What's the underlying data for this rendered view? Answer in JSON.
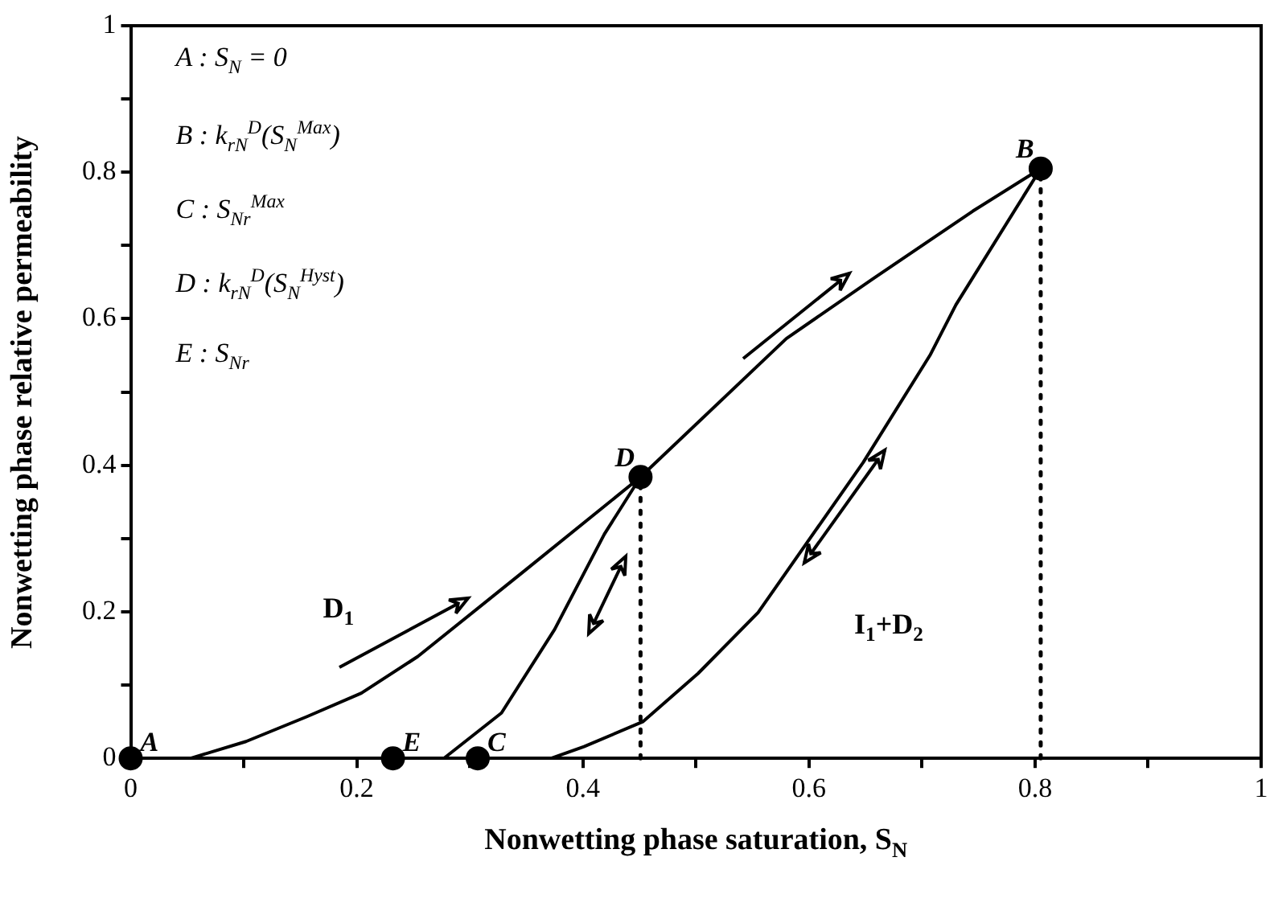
{
  "chart_data": {
    "type": "line",
    "xlabel": "Nonwetting phase saturation, S$_{N}$",
    "ylabel": "Nonwetting phase relative permeability",
    "xlim": [
      0,
      1
    ],
    "ylim": [
      0,
      1
    ],
    "xticks": [
      0,
      {
        "value": 0.1,
        "label": null
      },
      0.2,
      {
        "value": 0.3,
        "label": null
      },
      0.4,
      {
        "value": 0.5,
        "label": null
      },
      0.6,
      {
        "value": 0.7,
        "label": null
      },
      0.8,
      {
        "value": 0.9,
        "label": null
      },
      1
    ],
    "yticks": [
      0,
      {
        "value": 0.1,
        "label": null
      },
      0.2,
      {
        "value": 0.3,
        "label": null
      },
      0.4,
      {
        "value": 0.5,
        "label": null
      },
      0.6,
      {
        "value": 0.7,
        "label": null
      },
      0.8,
      {
        "value": 0.9,
        "label": null
      },
      1
    ],
    "grid": false,
    "legend": false,
    "marker": "none",
    "line_style": "solid",
    "series": [
      {
        "name": "D$_{1}$",
        "color": "#000000",
        "x": [
          0.053,
          0.102,
          0.156,
          0.204,
          0.254,
          0.346,
          0.451,
          0.58,
          0.657,
          0.745,
          0.805
        ],
        "values": [
          0,
          0.023,
          0.057,
          0.089,
          0.139,
          0.253,
          0.384,
          0.573,
          0.655,
          0.747,
          0.805
        ]
      },
      {
        "color": "#000000",
        "x": [
          0.277,
          0.328,
          0.375,
          0.419,
          0.451
        ],
        "values": [
          0,
          0.062,
          0.176,
          0.306,
          0.384
        ]
      },
      {
        "name": "I$_{1}$+D$_{2}$",
        "color": "#000000",
        "x": [
          0.372,
          0.401,
          0.453,
          0.502,
          0.555,
          0.648,
          0.707,
          0.73,
          0.805
        ],
        "values": [
          0,
          0.016,
          0.05,
          0.116,
          0.199,
          0.404,
          0.55,
          0.619,
          0.805
        ]
      },
      {
        "type": "scatter",
        "marker": "circle",
        "color": "#000000",
        "x": [
          0,
          0.232,
          0.307,
          0.451,
          0.805
        ],
        "values": [
          0,
          0,
          0,
          0.384,
          0.805
        ]
      },
      {
        "color": "#000000",
        "line_style": "dotted",
        "x": [
          0.451,
          0.451
        ],
        "values": [
          0,
          0.384
        ]
      },
      {
        "color": "#000000",
        "line_style": "dotted",
        "x": [
          0.805,
          0.805
        ],
        "values": [
          0,
          0.805
        ]
      }
    ],
    "annotations": [
      "A : S$_{N}$ = 0",
      "B : k$_{rN}$$^{D}$(S$_{N}$$^{Max}$)",
      "C : S$_{Nr}$$^{Max}$",
      "D : k$_{rN}$$^{D}$(S$_{N}$$^{Hyst}$)",
      "E : S$_{Nr}$",
      {
        "text": "A",
        "x": 0,
        "y": 0
      },
      {
        "text": "E",
        "x": 0.232,
        "y": 0
      },
      {
        "text": "C",
        "x": 0.307,
        "y": 0
      },
      {
        "text": "D",
        "x": 0.451,
        "y": 0.384
      },
      {
        "text": "B",
        "x": 0.805,
        "y": 0.805
      }
    ]
  }
}
